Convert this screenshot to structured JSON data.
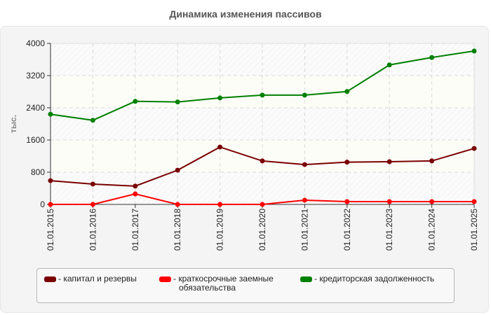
{
  "chart_data": {
    "type": "line",
    "title": "Динамика изменения пассивов",
    "xlabel": "",
    "ylabel": "тыс.",
    "ylim": [
      0,
      4000
    ],
    "yticks": [
      0,
      800,
      1600,
      2400,
      3200,
      4000
    ],
    "grid": true,
    "legend_position": "bottom",
    "categories": [
      "01.01.2015",
      "01.01.2016",
      "01.01.2017",
      "01.01.2018",
      "01.01.2019",
      "01.01.2020",
      "01.01.2021",
      "01.01.2022",
      "01.01.2023",
      "01.01.2024",
      "01.01.2025"
    ],
    "series": [
      {
        "name": "капитал и резервы",
        "color": "#7a0000",
        "values": [
          590,
          505,
          455,
          850,
          1425,
          1080,
          990,
          1050,
          1060,
          1080,
          1390
        ]
      },
      {
        "name": "краткосрочные заемные обязательства",
        "color": "#ff0000",
        "values": [
          0,
          0,
          260,
          0,
          0,
          0,
          105,
          70,
          70,
          70,
          70
        ]
      },
      {
        "name": "кредиторская задолженность",
        "color": "#008000",
        "values": [
          2240,
          2090,
          2560,
          2545,
          2645,
          2715,
          2715,
          2805,
          3465,
          3650,
          3810
        ]
      }
    ]
  },
  "legend": {
    "items": [
      {
        "label_line1": "- капитал и резервы",
        "label_line2": "",
        "color": "#7a0000"
      },
      {
        "label_line1": "- краткосрочные заемные",
        "label_line2": "обязательства",
        "color": "#ff0000"
      },
      {
        "label_line1": "- кредиторская задолженность",
        "label_line2": "",
        "color": "#008000"
      }
    ]
  }
}
